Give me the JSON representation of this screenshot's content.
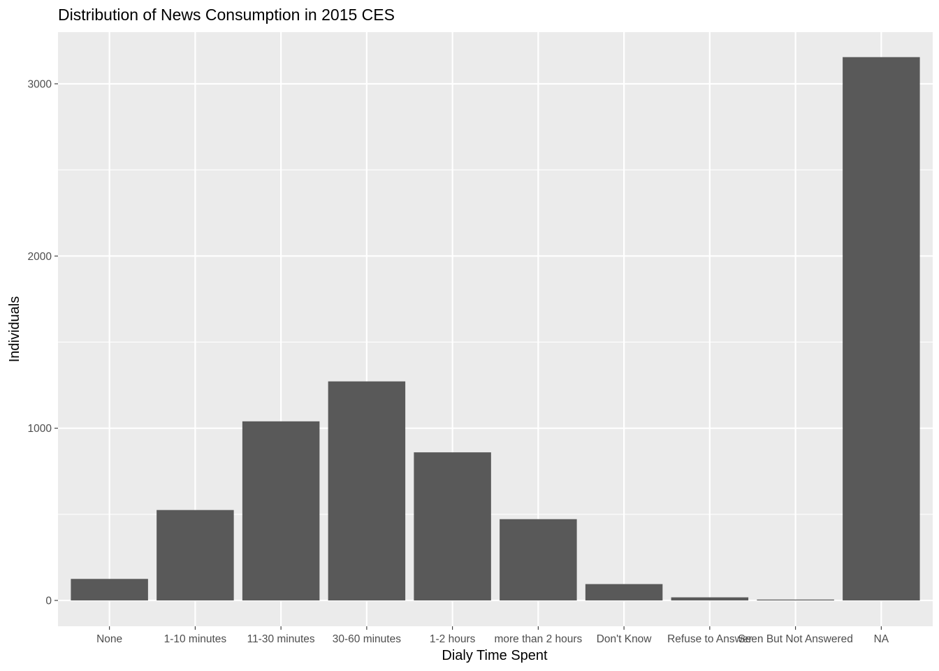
{
  "chart_data": {
    "type": "bar",
    "title": "Distribution of News Consumption in 2015 CES",
    "xlabel": "Dialy Time Spent",
    "ylabel": "Individuals",
    "categories": [
      "None",
      "1-10 minutes",
      "11-30 minutes",
      "30-60 minutes",
      "1-2 hours",
      "more than 2 hours",
      "Don't Know",
      "Refuse to Answer",
      "Seen But Not Answered",
      "NA"
    ],
    "values": [
      125,
      525,
      1040,
      1272,
      860,
      472,
      95,
      18,
      5,
      3155
    ],
    "ylim": [
      -150,
      3300
    ],
    "yticks": [
      0,
      1000,
      2000,
      3000
    ],
    "ytick_labels": [
      "0",
      "1000",
      "2000",
      "3000"
    ],
    "grid": true,
    "legend": "none",
    "colors": {
      "bar": "#595959",
      "panel": "#ebebeb",
      "grid_major": "#ffffff",
      "tick_text": "#4d4d4d"
    }
  }
}
